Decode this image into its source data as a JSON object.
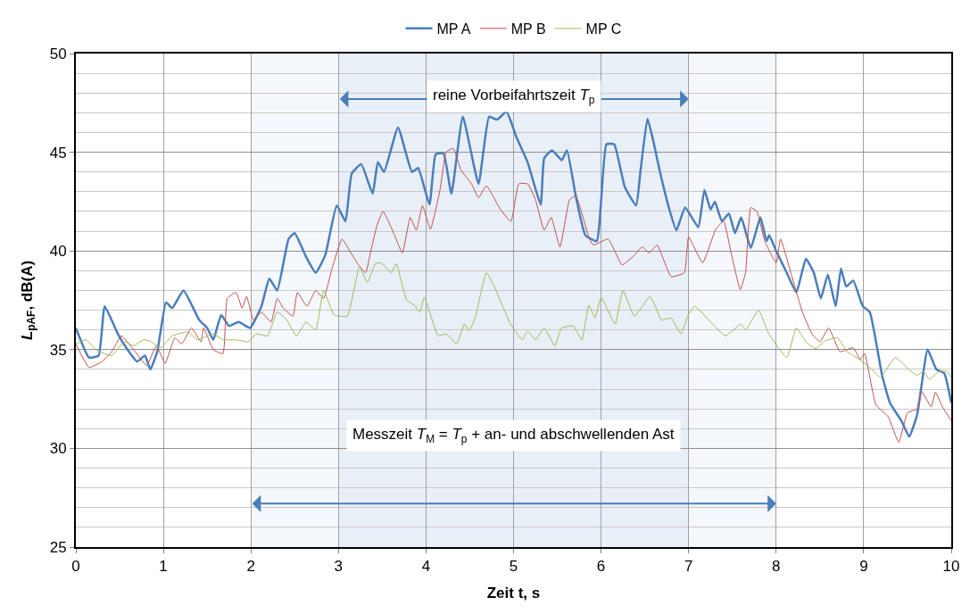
{
  "chart_data": {
    "type": "line",
    "xlabel": "Zeit t, s",
    "ylabel": "L$_{pAF}$, dB(A)",
    "xlim": [
      0,
      10
    ],
    "xticks": [
      0,
      1,
      2,
      3,
      4,
      5,
      6,
      7,
      8,
      9,
      10
    ],
    "ylim": [
      25,
      50
    ],
    "yticks": [
      25,
      30,
      35,
      40,
      45,
      50
    ],
    "grid": true,
    "legend": "top",
    "marker": "none",
    "line_style": "solid",
    "bands": [
      {
        "axis": "x",
        "from": 3,
        "to": 7,
        "label": "reine Vorbeifahrtszeit T$_{p}$",
        "color": "#4a7ebb"
      },
      {
        "axis": "x",
        "from": 2,
        "to": 8,
        "label": "Messzeit T$_{M}$ = T$_{p}$ + an- und abschwellenden Ast",
        "color": "#4a7ebb"
      }
    ],
    "series": [
      {
        "name": "MP A",
        "color": "#4a7ebb",
        "x": [
          0,
          0.15,
          0.26,
          0.33,
          0.48,
          0.59,
          0.7,
          0.79,
          0.85,
          0.93,
          1.03,
          1.1,
          1.23,
          1.41,
          1.5,
          1.57,
          1.66,
          1.75,
          1.86,
          1.99,
          2.12,
          2.21,
          2.3,
          2.43,
          2.5,
          2.63,
          2.74,
          2.85,
          2.98,
          3.08,
          3.15,
          3.26,
          3.39,
          3.45,
          3.52,
          3.68,
          3.84,
          3.91,
          4.04,
          4.11,
          4.2,
          4.29,
          4.42,
          4.6,
          4.72,
          4.81,
          4.92,
          5.03,
          5.16,
          5.31,
          5.35,
          5.44,
          5.55,
          5.61,
          5.71,
          5.82,
          5.95,
          6.06,
          6.15,
          6.27,
          6.4,
          6.45,
          6.53,
          6.6,
          6.67,
          6.78,
          6.86,
          6.96,
          7.11,
          7.18,
          7.25,
          7.3,
          7.38,
          7.46,
          7.53,
          7.6,
          7.71,
          7.82,
          7.89,
          7.92,
          8.0,
          8.12,
          8.23,
          8.34,
          8.43,
          8.51,
          8.59,
          8.68,
          8.74,
          8.8,
          8.88,
          8.99,
          9.07,
          9.21,
          9.3,
          9.43,
          9.52,
          9.61,
          9.73,
          9.83,
          9.92,
          10.0
        ],
        "values": [
          36.1,
          34.6,
          34.7,
          37.2,
          35.8,
          35.0,
          34.4,
          34.7,
          34.0,
          34.9,
          37.4,
          37.1,
          38.0,
          36.5,
          36.1,
          35.5,
          36.75,
          36.2,
          36.4,
          36.1,
          37.2,
          38.6,
          38.0,
          40.6,
          40.9,
          39.7,
          38.9,
          39.8,
          42.3,
          41.5,
          43.9,
          44.4,
          42.9,
          44.5,
          44.0,
          46.25,
          44.0,
          44.2,
          42.35,
          44.9,
          44.95,
          42.9,
          46.8,
          43.4,
          46.8,
          46.65,
          47.05,
          45.8,
          44.5,
          42.35,
          44.7,
          45.1,
          44.6,
          45.1,
          42.8,
          40.8,
          40.5,
          45.4,
          45.4,
          43.25,
          42.3,
          44.05,
          46.7,
          45.5,
          44.05,
          42.1,
          41.05,
          42.2,
          41.2,
          43.1,
          42.1,
          42.5,
          41.5,
          41.9,
          40.9,
          41.7,
          40.15,
          41.7,
          40.5,
          40.8,
          40.0,
          38.9,
          37.9,
          39.6,
          38.9,
          37.6,
          38.8,
          37.2,
          39.1,
          38.2,
          38.5,
          37.2,
          36.9,
          33.7,
          32.3,
          31.4,
          30.6,
          31.7,
          35.0,
          34.0,
          33.8,
          32.3
        ]
      },
      {
        "name": "MP B",
        "color": "#c0504d",
        "x": [
          0,
          0.15,
          0.3,
          0.41,
          0.52,
          0.66,
          0.81,
          0.92,
          1.02,
          1.13,
          1.21,
          1.32,
          1.43,
          1.46,
          1.57,
          1.68,
          1.73,
          1.83,
          1.9,
          1.95,
          2.03,
          2.12,
          2.23,
          2.3,
          2.37,
          2.48,
          2.53,
          2.64,
          2.74,
          2.83,
          2.92,
          3.04,
          3.13,
          3.22,
          3.31,
          3.37,
          3.44,
          3.51,
          3.64,
          3.73,
          3.82,
          3.89,
          3.96,
          4.05,
          4.16,
          4.23,
          4.31,
          4.4,
          4.52,
          4.6,
          4.69,
          4.85,
          4.97,
          5.06,
          5.16,
          5.25,
          5.35,
          5.43,
          5.53,
          5.64,
          5.71,
          5.86,
          5.91,
          6.08,
          6.24,
          6.36,
          6.47,
          6.55,
          6.64,
          6.8,
          6.95,
          7.0,
          7.16,
          7.31,
          7.4,
          7.49,
          7.59,
          7.65,
          7.71,
          7.78,
          7.87,
          8.0,
          8.05,
          8.18,
          8.3,
          8.41,
          8.5,
          8.6,
          8.73,
          8.88,
          8.96,
          9.01,
          9.14,
          9.28,
          9.4,
          9.5,
          9.61,
          9.66,
          9.77,
          9.82,
          9.9,
          10.0
        ],
        "values": [
          35.3,
          34.1,
          34.4,
          34.9,
          35.7,
          35.0,
          34.2,
          35.2,
          34.3,
          35.6,
          35.3,
          36.1,
          35.4,
          36.1,
          35.0,
          34.8,
          37.6,
          37.9,
          37.1,
          37.7,
          36.5,
          36.9,
          36.4,
          37.6,
          37.1,
          36.7,
          37.9,
          37.2,
          38.0,
          37.6,
          39.0,
          40.6,
          40.0,
          39.35,
          38.9,
          40.0,
          41.3,
          42.0,
          40.8,
          39.9,
          41.7,
          41.05,
          42.3,
          41.1,
          43.1,
          45.0,
          45.2,
          44.1,
          43.4,
          42.7,
          43.3,
          42.1,
          41.5,
          43.4,
          43.4,
          42.6,
          41.05,
          41.7,
          40.2,
          42.6,
          42.8,
          40.7,
          40.3,
          40.6,
          39.3,
          39.7,
          40.2,
          39.9,
          40.3,
          38.7,
          38.9,
          40.7,
          39.4,
          41.1,
          41.5,
          39.8,
          38.05,
          38.9,
          42.2,
          42.0,
          40.5,
          39.4,
          40.6,
          38.7,
          36.9,
          35.8,
          35.4,
          36.1,
          34.9,
          35.1,
          34.5,
          34.8,
          32.2,
          31.6,
          30.3,
          31.8,
          32.0,
          32.9,
          32.1,
          32.85,
          32.1,
          31.4
        ]
      },
      {
        "name": "MP C",
        "color": "#9bbb59",
        "x": [
          0,
          0.12,
          0.23,
          0.41,
          0.55,
          0.66,
          0.77,
          0.84,
          0.97,
          1.1,
          1.28,
          1.39,
          1.57,
          1.68,
          1.83,
          1.97,
          2.06,
          2.19,
          2.3,
          2.41,
          2.52,
          2.63,
          2.74,
          2.83,
          2.95,
          3.1,
          3.24,
          3.33,
          3.42,
          3.49,
          3.6,
          3.66,
          3.78,
          3.87,
          3.93,
          3.98,
          4.14,
          4.23,
          4.35,
          4.44,
          4.49,
          4.56,
          4.69,
          4.78,
          4.96,
          5.1,
          5.16,
          5.25,
          5.35,
          5.47,
          5.55,
          5.68,
          5.78,
          5.86,
          5.93,
          6.0,
          6.16,
          6.25,
          6.38,
          6.56,
          6.62,
          6.69,
          6.8,
          6.91,
          7.0,
          7.07,
          7.25,
          7.42,
          7.6,
          7.65,
          7.8,
          7.91,
          8.12,
          8.23,
          8.34,
          8.45,
          8.56,
          8.7,
          8.81,
          8.92,
          9.07,
          9.19,
          9.36,
          9.54,
          9.61,
          9.68,
          9.75,
          9.86,
          9.95,
          10.0
        ],
        "values": [
          35.3,
          35.5,
          35.0,
          34.7,
          35.4,
          35.2,
          35.5,
          35.45,
          35.1,
          35.7,
          35.9,
          35.5,
          35.8,
          35.5,
          35.5,
          35.4,
          35.8,
          35.7,
          36.9,
          36.5,
          35.7,
          36.4,
          36.0,
          38.0,
          36.75,
          36.7,
          39.2,
          38.4,
          39.35,
          39.4,
          38.9,
          39.35,
          37.5,
          37.25,
          36.9,
          37.65,
          35.7,
          35.8,
          35.3,
          36.3,
          35.95,
          36.6,
          38.9,
          38.2,
          36.35,
          35.5,
          35.95,
          35.5,
          36.1,
          35.2,
          36.1,
          36.2,
          35.5,
          37.25,
          36.6,
          37.65,
          36.3,
          38.0,
          36.7,
          37.7,
          37.2,
          36.5,
          36.6,
          35.8,
          36.8,
          37.2,
          36.4,
          35.7,
          36.3,
          36.0,
          37.0,
          35.85,
          34.6,
          36.1,
          35.4,
          35.05,
          35.45,
          35.6,
          34.9,
          34.6,
          34.1,
          33.6,
          34.6,
          33.9,
          33.7,
          33.9,
          33.5,
          33.9,
          33.9,
          33.6
        ]
      }
    ]
  }
}
